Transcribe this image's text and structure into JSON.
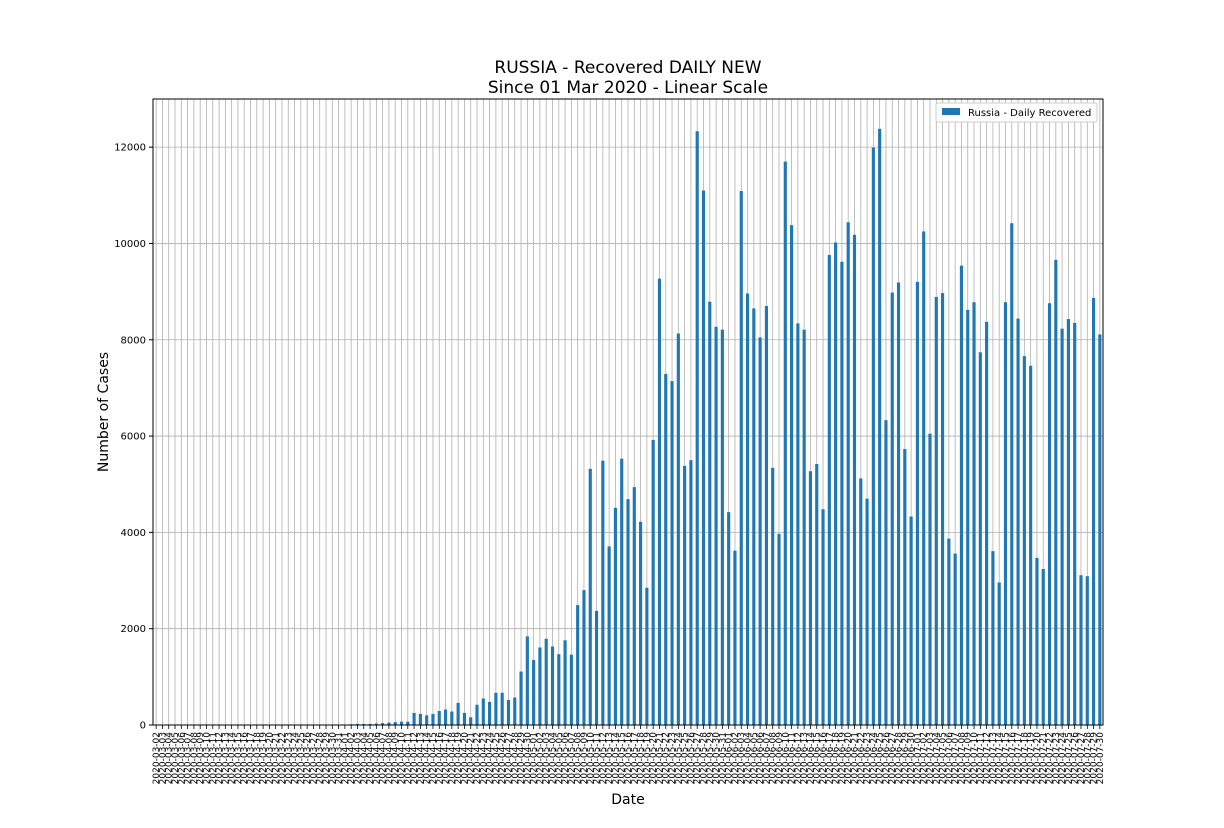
{
  "chart_data": {
    "type": "bar",
    "title": "RUSSIA - Recovered DAILY NEW",
    "subtitle": "Since 01 Mar 2020 - Linear Scale",
    "xlabel": "Date",
    "ylabel": "Number of Cases",
    "ylim": [
      0,
      13000
    ],
    "yticks": [
      0,
      2000,
      4000,
      6000,
      8000,
      10000,
      12000
    ],
    "grid": true,
    "legend_position": "top-right",
    "bar_color": "#1f77b4",
    "start_date": "2020-03-02",
    "series": [
      {
        "name": "Russia - Daily Recovered",
        "values": [
          0,
          0,
          0,
          0,
          0,
          0,
          0,
          0,
          0,
          0,
          0,
          0,
          0,
          0,
          0,
          0,
          0,
          0,
          0,
          0,
          0,
          0,
          0,
          0,
          0,
          0,
          0,
          0,
          0,
          0,
          10,
          15,
          20,
          20,
          20,
          30,
          40,
          50,
          60,
          70,
          70,
          250,
          230,
          200,
          230,
          290,
          320,
          280,
          460,
          250,
          160,
          420,
          550,
          480,
          670,
          670,
          520,
          570,
          1110,
          1840,
          1350,
          1610,
          1790,
          1630,
          1470,
          1760,
          1460,
          2490,
          2800,
          5320,
          2370,
          5490,
          3710,
          4510,
          5530,
          4690,
          4940,
          4220,
          2850,
          5920,
          9270,
          7290,
          7140,
          8130,
          5380,
          5500,
          12330,
          11100,
          8790,
          8270,
          8210,
          4420,
          3620,
          11090,
          8960,
          8650,
          8050,
          8700,
          5340,
          3970,
          11700,
          10380,
          8340,
          8210,
          5270,
          5420,
          4480,
          9760,
          10020,
          9620,
          10440,
          10180,
          5120,
          4700,
          11990,
          12380,
          6330,
          8980,
          9190,
          5730,
          4330,
          9200,
          10250,
          6050,
          8890,
          8970,
          3870,
          3560,
          9540,
          8620,
          8780,
          7740,
          8370,
          3610,
          2960,
          8780,
          10420,
          8440,
          7660,
          7460,
          3470,
          3240,
          8760,
          9660,
          8230,
          8430,
          8350,
          3110,
          3090,
          8870,
          8110
        ]
      }
    ]
  }
}
